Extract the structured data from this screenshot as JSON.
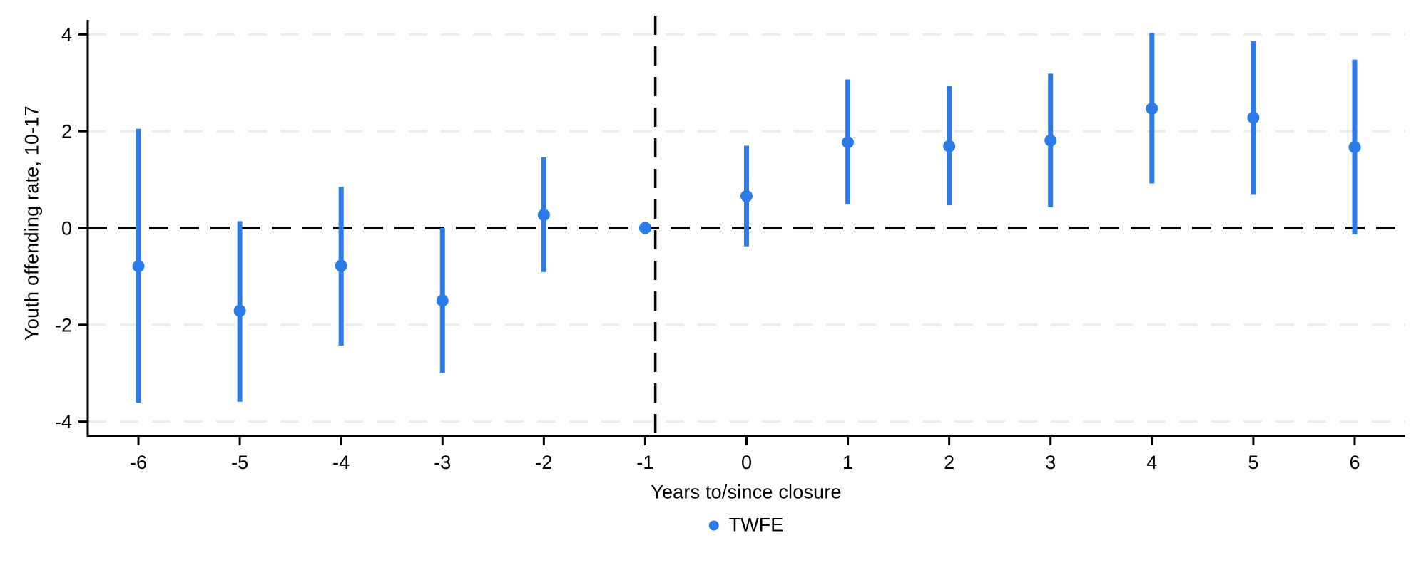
{
  "colors": {
    "series_blue": "#2b7ce9",
    "grid_gray": "#ebebeb",
    "axis_black": "#000000",
    "background": "#ffffff"
  },
  "chart_data": {
    "type": "scatter",
    "subtype": "event-study-coefficient-plot",
    "xlabel": "Years to/since closure",
    "ylabel": "Youth offending rate, 10-17",
    "xlim": [
      -6.5,
      6.5
    ],
    "ylim": [
      -4.3,
      4.3
    ],
    "xticks": [
      -6,
      -5,
      -4,
      -3,
      -2,
      -1,
      0,
      1,
      2,
      3,
      4,
      5,
      6
    ],
    "yticks": [
      -4,
      -2,
      0,
      2,
      4
    ],
    "grid": "horizontal dashed light-gray at yticks except 0",
    "legend_position": "bottom-center",
    "reference_lines": {
      "horizontal_y": 0,
      "vertical_x": -0.9,
      "style": "black dashed"
    },
    "series": [
      {
        "name": "TWFE",
        "marker": "circle",
        "color": "#2b7ce9",
        "x": [
          -6,
          -5,
          -4,
          -3,
          -2,
          -1,
          0,
          1,
          2,
          3,
          4,
          5,
          6
        ],
        "estimates": [
          -0.79,
          -1.71,
          -0.78,
          -1.5,
          0.27,
          0.0,
          0.66,
          1.77,
          1.69,
          1.81,
          2.47,
          2.28,
          1.67
        ],
        "ci_low": [
          -3.61,
          -3.59,
          -2.43,
          -2.99,
          -0.91,
          null,
          -0.38,
          0.49,
          0.47,
          0.43,
          0.92,
          0.7,
          -0.13
        ],
        "ci_high": [
          2.05,
          0.14,
          0.85,
          0.0,
          1.46,
          null,
          1.7,
          3.07,
          2.94,
          3.19,
          4.03,
          3.86,
          3.48
        ]
      }
    ]
  }
}
